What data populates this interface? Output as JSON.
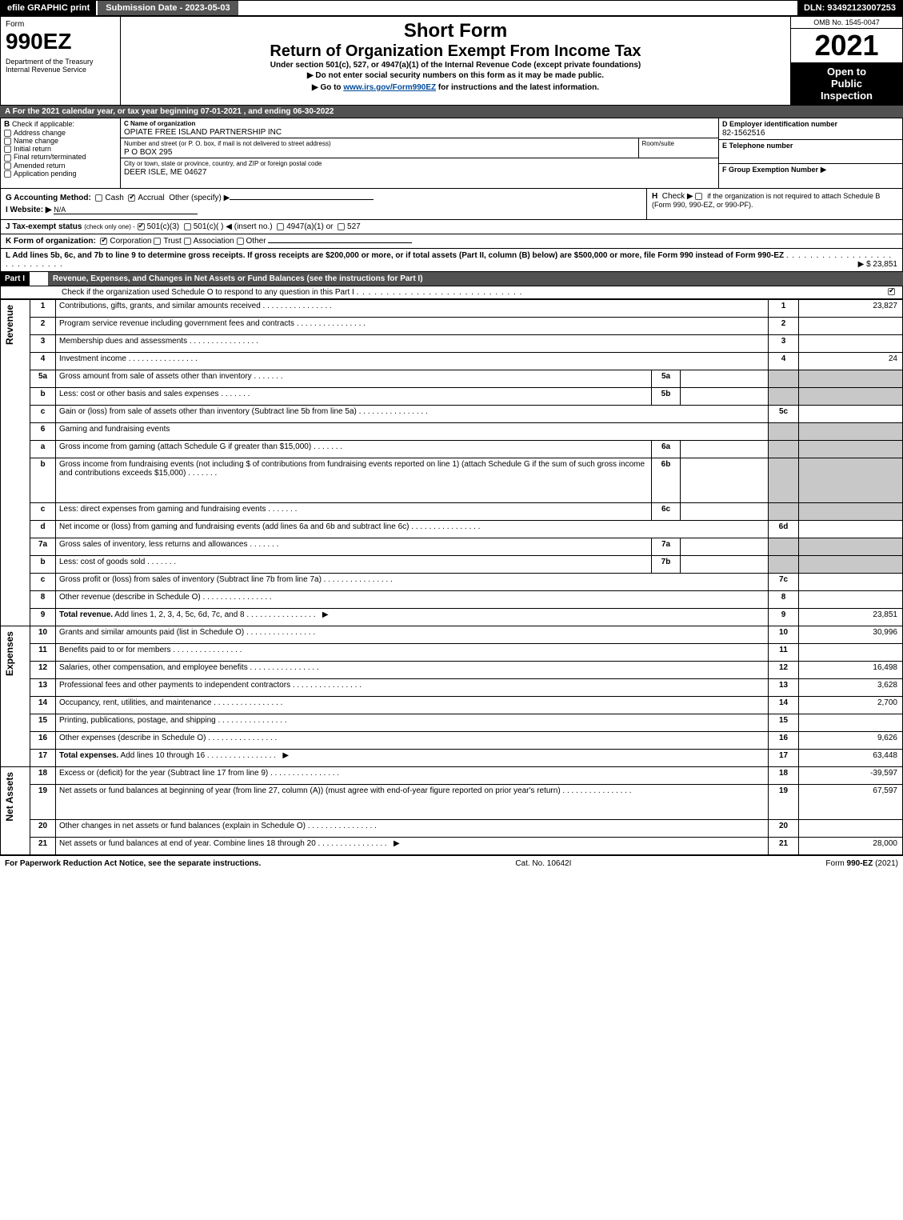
{
  "topbar": {
    "efile": "efile GRAPHIC print",
    "submission": "Submission Date - 2023-05-03",
    "dln": "DLN: 93492123007253"
  },
  "header": {
    "form_word": "Form",
    "form_number": "990EZ",
    "department": "Department of the Treasury\nInternal Revenue Service",
    "title_short": "Short Form",
    "title_return": "Return of Organization Exempt From Income Tax",
    "subtitle": "Under section 501(c), 527, or 4947(a)(1) of the Internal Revenue Code (except private foundations)",
    "instr_nossn": "▶ Do not enter social security numbers on this form as it may be made public.",
    "instr_goto_pre": "▶ Go to ",
    "instr_goto_link": "www.irs.gov/Form990EZ",
    "instr_goto_post": " for instructions and the latest information.",
    "omb": "OMB No. 1545-0047",
    "year": "2021",
    "inspect1": "Open to",
    "inspect2": "Public",
    "inspect3": "Inspection"
  },
  "section_a": "A  For the 2021 calendar year, or tax year beginning 07-01-2021 , and ending 06-30-2022",
  "box_b": {
    "label": "Check if applicable:",
    "items": [
      "Address change",
      "Name change",
      "Initial return",
      "Final return/terminated",
      "Amended return",
      "Application pending"
    ]
  },
  "box_c": {
    "label": "C Name of organization",
    "name": "OPIATE FREE ISLAND PARTNERSHIP INC",
    "street_label": "Number and street (or P. O. box, if mail is not delivered to street address)",
    "room_label": "Room/suite",
    "street": "P O BOX 295",
    "city_label": "City or town, state or province, country, and ZIP or foreign postal code",
    "city": "DEER ISLE, ME  04627"
  },
  "box_d": {
    "label": "D Employer identification number",
    "value": "82-1562516"
  },
  "box_e": {
    "label": "E Telephone number",
    "value": ""
  },
  "box_f": {
    "label": "F Group Exemption Number",
    "arrow": "▶"
  },
  "box_g": {
    "label": "G Accounting Method:",
    "cash": "Cash",
    "accrual": "Accrual",
    "other": "Other (specify) ▶"
  },
  "box_h": {
    "label": "H",
    "text": "Check ▶",
    "text2": "if the organization is not required to attach Schedule B (Form 990, 990-EZ, or 990-PF)."
  },
  "box_i": {
    "label": "I Website: ▶",
    "value": "N/A"
  },
  "box_j": {
    "label": "J Tax-exempt status",
    "sub": "(check only one) -",
    "opt1": "501(c)(3)",
    "opt2": "501(c)(  )",
    "opt2b": "◀ (insert no.)",
    "opt3": "4947(a)(1) or",
    "opt4": "527"
  },
  "box_k": {
    "label": "K Form of organization:",
    "opts": [
      "Corporation",
      "Trust",
      "Association",
      "Other"
    ]
  },
  "box_l": {
    "text": "L Add lines 5b, 6c, and 7b to line 9 to determine gross receipts. If gross receipts are $200,000 or more, or if total assets (Part II, column (B) below) are $500,000 or more, file Form 990 instead of Form 990-EZ",
    "amount": "▶ $ 23,851"
  },
  "part1": {
    "hdr": "Part I",
    "title": "Revenue, Expenses, and Changes in Net Assets or Fund Balances (see the instructions for Part I)",
    "check_line": "Check if the organization used Schedule O to respond to any question in this Part I"
  },
  "sections": {
    "revenue": "Revenue",
    "expenses": "Expenses",
    "netassets": "Net Assets"
  },
  "lines": [
    {
      "n": "1",
      "d": "Contributions, gifts, grants, and similar amounts received",
      "r": "1",
      "a": "23,827"
    },
    {
      "n": "2",
      "d": "Program service revenue including government fees and contracts",
      "r": "2",
      "a": ""
    },
    {
      "n": "3",
      "d": "Membership dues and assessments",
      "r": "3",
      "a": ""
    },
    {
      "n": "4",
      "d": "Investment income",
      "r": "4",
      "a": "24"
    },
    {
      "n": "5a",
      "d": "Gross amount from sale of assets other than inventory",
      "sub": "5a",
      "sv": "",
      "grey": true
    },
    {
      "n": "b",
      "d": "Less: cost or other basis and sales expenses",
      "sub": "5b",
      "sv": "",
      "grey": true
    },
    {
      "n": "c",
      "d": "Gain or (loss) from sale of assets other than inventory (Subtract line 5b from line 5a)",
      "r": "5c",
      "a": ""
    },
    {
      "n": "6",
      "d": "Gaming and fundraising events",
      "grey": true,
      "noright": true
    },
    {
      "n": "a",
      "d": "Gross income from gaming (attach Schedule G if greater than $15,000)",
      "sub": "6a",
      "sv": "",
      "grey": true
    },
    {
      "n": "b",
      "d": "Gross income from fundraising events (not including $                          of contributions from fundraising events reported on line 1) (attach Schedule G if the sum of such gross income and contributions exceeds $15,000)",
      "sub": "6b",
      "sv": "",
      "grey": true,
      "tall": true
    },
    {
      "n": "c",
      "d": "Less: direct expenses from gaming and fundraising events",
      "sub": "6c",
      "sv": "",
      "grey": true
    },
    {
      "n": "d",
      "d": "Net income or (loss) from gaming and fundraising events (add lines 6a and 6b and subtract line 6c)",
      "r": "6d",
      "a": ""
    },
    {
      "n": "7a",
      "d": "Gross sales of inventory, less returns and allowances",
      "sub": "7a",
      "sv": "",
      "grey": true
    },
    {
      "n": "b",
      "d": "Less: cost of goods sold",
      "sub": "7b",
      "sv": "",
      "grey": true
    },
    {
      "n": "c",
      "d": "Gross profit or (loss) from sales of inventory (Subtract line 7b from line 7a)",
      "r": "7c",
      "a": ""
    },
    {
      "n": "8",
      "d": "Other revenue (describe in Schedule O)",
      "r": "8",
      "a": ""
    },
    {
      "n": "9",
      "d": "Total revenue. Add lines 1, 2, 3, 4, 5c, 6d, 7c, and 8",
      "r": "9",
      "a": "23,851",
      "bold": true,
      "arrow": true
    }
  ],
  "exp_lines": [
    {
      "n": "10",
      "d": "Grants and similar amounts paid (list in Schedule O)",
      "r": "10",
      "a": "30,996"
    },
    {
      "n": "11",
      "d": "Benefits paid to or for members",
      "r": "11",
      "a": ""
    },
    {
      "n": "12",
      "d": "Salaries, other compensation, and employee benefits",
      "r": "12",
      "a": "16,498"
    },
    {
      "n": "13",
      "d": "Professional fees and other payments to independent contractors",
      "r": "13",
      "a": "3,628"
    },
    {
      "n": "14",
      "d": "Occupancy, rent, utilities, and maintenance",
      "r": "14",
      "a": "2,700"
    },
    {
      "n": "15",
      "d": "Printing, publications, postage, and shipping",
      "r": "15",
      "a": ""
    },
    {
      "n": "16",
      "d": "Other expenses (describe in Schedule O)",
      "r": "16",
      "a": "9,626"
    },
    {
      "n": "17",
      "d": "Total expenses. Add lines 10 through 16",
      "r": "17",
      "a": "63,448",
      "bold": true,
      "arrow": true
    }
  ],
  "na_lines": [
    {
      "n": "18",
      "d": "Excess or (deficit) for the year (Subtract line 17 from line 9)",
      "r": "18",
      "a": "-39,597"
    },
    {
      "n": "19",
      "d": "Net assets or fund balances at beginning of year (from line 27, column (A)) (must agree with end-of-year figure reported on prior year's return)",
      "r": "19",
      "a": "67,597",
      "tall": true
    },
    {
      "n": "20",
      "d": "Other changes in net assets or fund balances (explain in Schedule O)",
      "r": "20",
      "a": ""
    },
    {
      "n": "21",
      "d": "Net assets or fund balances at end of year. Combine lines 18 through 20",
      "r": "21",
      "a": "28,000",
      "arrow": true
    }
  ],
  "footer": {
    "left": "For Paperwork Reduction Act Notice, see the separate instructions.",
    "mid": "Cat. No. 10642I",
    "right_pre": "Form ",
    "right_form": "990-EZ",
    "right_post": " (2021)"
  },
  "colors": {
    "black": "#000000",
    "darkgrey": "#515151",
    "cellgrey": "#c8c8c8",
    "link": "#004b9b"
  }
}
